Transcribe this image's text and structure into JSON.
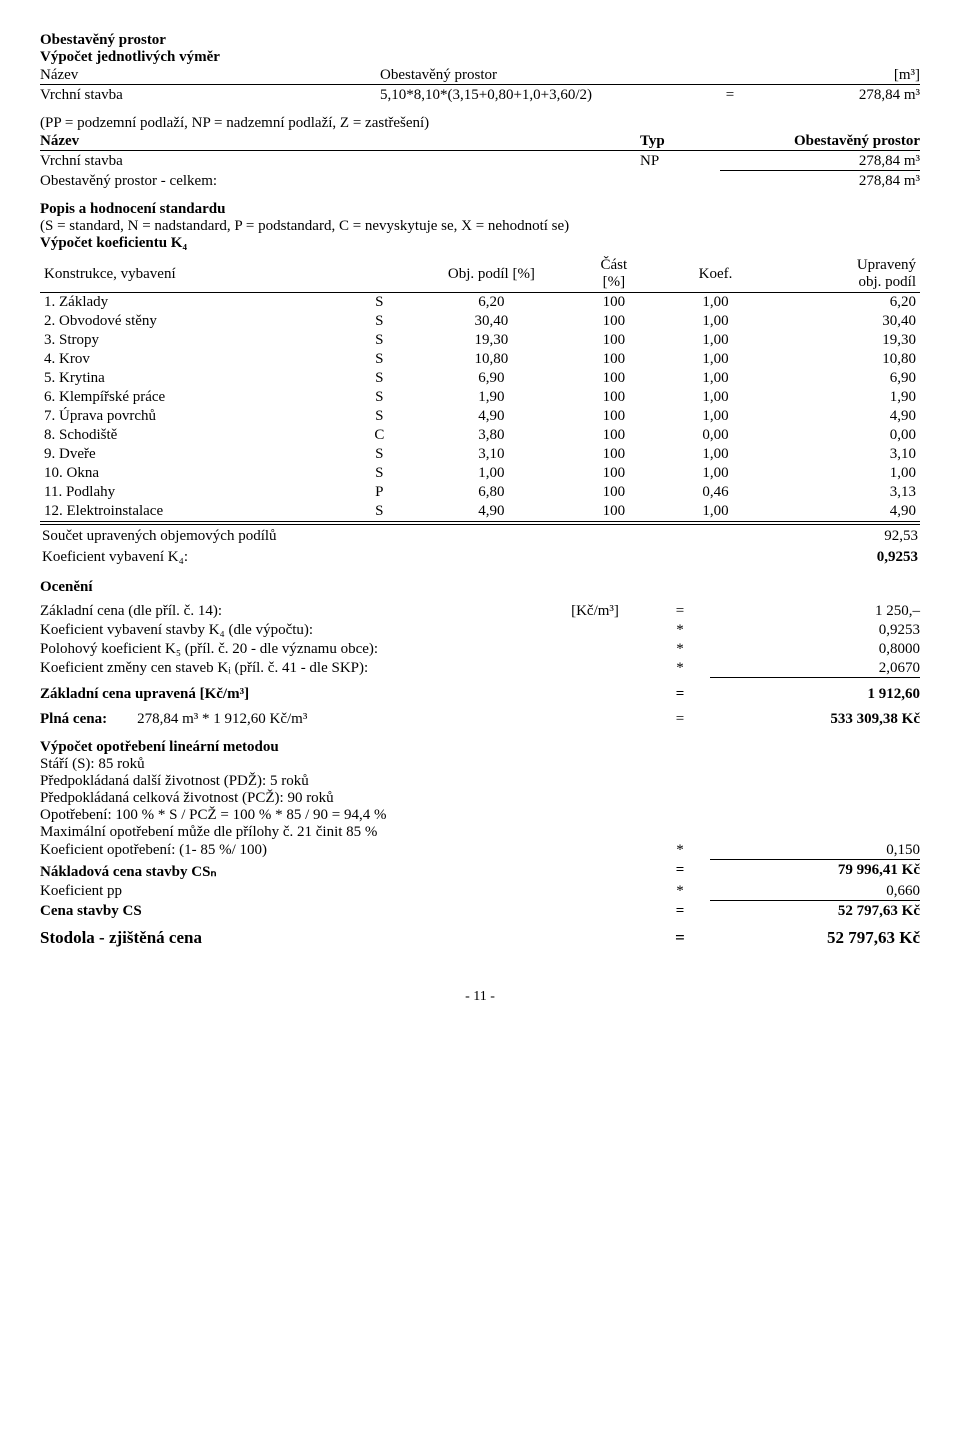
{
  "h1": "Obestavěný prostor",
  "h2": "Výpočet jednotlivých výměr",
  "vymery_head": {
    "c1": "Název",
    "c2": "Obestavěný prostor",
    "c3": "",
    "c4": "[m³]"
  },
  "vymery": [
    {
      "name": "Vrchní stavba",
      "expr": "5,10*8,10*(3,15+0,80+1,0+3,60/2)",
      "eq": "=",
      "val": "278,84 m³"
    }
  ],
  "legend1": "(PP = podzemní podlaží, NP = nadzemní podlaží, Z = zastřešení)",
  "typ_head": {
    "c1": "Název",
    "c2": "Typ",
    "c3": "Obestavěný prostor"
  },
  "typ_rows": [
    {
      "name": "Vrchní stavba",
      "typ": "NP",
      "val": "278,84 m³"
    }
  ],
  "total_row": {
    "label": "Obestavěný prostor - celkem:",
    "val": "278,84 m³"
  },
  "h3": "Popis a hodnocení standardu",
  "legend2": "(S = standard, N = nadstandard, P = podstandard, C = nevyskytuje se, X = nehodnotí se)",
  "h4": "Výpočet koeficientu K₄",
  "k4_head": {
    "c1": "Konstrukce, vybavení",
    "c2": "",
    "c3": "Obj. podíl [%]",
    "c4": "Část\n[%]",
    "c5": "Koef.",
    "c6": "Upravený\nobj. podíl"
  },
  "k4": [
    {
      "n": "1. Základy",
      "s": "S",
      "p": "6,20",
      "c": "100",
      "k": "1,00",
      "u": "6,20"
    },
    {
      "n": "2. Obvodové stěny",
      "s": "S",
      "p": "30,40",
      "c": "100",
      "k": "1,00",
      "u": "30,40"
    },
    {
      "n": "3. Stropy",
      "s": "S",
      "p": "19,30",
      "c": "100",
      "k": "1,00",
      "u": "19,30"
    },
    {
      "n": "4. Krov",
      "s": "S",
      "p": "10,80",
      "c": "100",
      "k": "1,00",
      "u": "10,80"
    },
    {
      "n": "5. Krytina",
      "s": "S",
      "p": "6,90",
      "c": "100",
      "k": "1,00",
      "u": "6,90"
    },
    {
      "n": "6. Klempířské práce",
      "s": "S",
      "p": "1,90",
      "c": "100",
      "k": "1,00",
      "u": "1,90"
    },
    {
      "n": "7. Úprava povrchů",
      "s": "S",
      "p": "4,90",
      "c": "100",
      "k": "1,00",
      "u": "4,90"
    },
    {
      "n": "8. Schodiště",
      "s": "C",
      "p": "3,80",
      "c": "100",
      "k": "0,00",
      "u": "0,00"
    },
    {
      "n": "9. Dveře",
      "s": "S",
      "p": "3,10",
      "c": "100",
      "k": "1,00",
      "u": "3,10"
    },
    {
      "n": "10. Okna",
      "s": "S",
      "p": "1,00",
      "c": "100",
      "k": "1,00",
      "u": "1,00"
    },
    {
      "n": "11. Podlahy",
      "s": "P",
      "p": "6,80",
      "c": "100",
      "k": "0,46",
      "u": "3,13"
    },
    {
      "n": "12. Elektroinstalace",
      "s": "S",
      "p": "4,90",
      "c": "100",
      "k": "1,00",
      "u": "4,90"
    }
  ],
  "k4_sum": {
    "label": "Součet upravených objemových podílů",
    "val": "92,53"
  },
  "k4_coef": {
    "label": "Koeficient vybavení K₄:",
    "val": "0,9253"
  },
  "h5": "Ocenění",
  "price1": {
    "label": "Základní cena (dle příl. č. 14):",
    "unit": "[Kč/m³]",
    "op": "=",
    "val": "1 250,–"
  },
  "price2": {
    "label": "Koeficient vybavení stavby K₄ (dle výpočtu):",
    "unit": "",
    "op": "*",
    "val": "0,9253"
  },
  "price3": {
    "label": "Polohový koeficient K₅ (příl. č. 20 - dle významu obce):",
    "unit": "",
    "op": "*",
    "val": "0,8000"
  },
  "price4": {
    "label": "Koeficient změny cen staveb Kᵢ (příl. č. 41 - dle SKP):",
    "unit": "",
    "op": "*",
    "val": "2,0670"
  },
  "zcu": {
    "label": "Základní cena upravená [Kč/m³]",
    "op": "=",
    "val": "1 912,60"
  },
  "plna": {
    "label": "Plná cena:",
    "expr": "278,84 m³ * 1 912,60 Kč/m³",
    "op": "=",
    "val": "533 309,38 Kč"
  },
  "h6": "Výpočet opotřebení lineární metodou",
  "opo": [
    "Stáří (S): 85 roků",
    "Předpokládaná další životnost (PDŽ): 5 roků",
    "Předpokládaná celková životnost (PCŽ): 90 roků",
    "Opotřebení: 100 % * S / PCŽ = 100 % * 85 / 90 = 94,4 %",
    "Maximální opotřebení může dle přílohy č. 21 činit 85 %"
  ],
  "kopo": {
    "label": "Koeficient opotřebení: (1- 85 %/ 100)",
    "op": "*",
    "val": "0,150"
  },
  "nakl": {
    "label": "Nákladová cena stavby CSₙ",
    "op": "=",
    "val": "79 996,41 Kč"
  },
  "kpp": {
    "label": "Koeficient pp",
    "op": "*",
    "val": "0,660"
  },
  "cena": {
    "label": "Cena stavby CS",
    "op": "=",
    "val": "52 797,63 Kč"
  },
  "zj": {
    "label": "Stodola - zjištěná cena",
    "op": "=",
    "val": "52 797,63 Kč"
  },
  "page": "- 11 -"
}
